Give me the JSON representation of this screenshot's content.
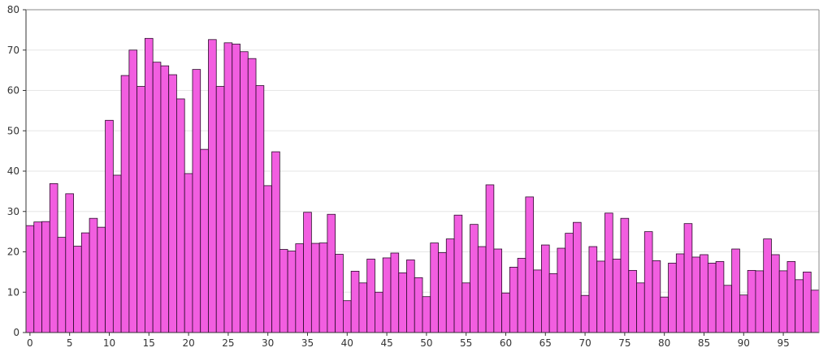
{
  "chart_data": {
    "type": "bar",
    "title": "",
    "xlabel": "",
    "ylabel": "",
    "xlim": [
      0,
      100
    ],
    "ylim": [
      0,
      80
    ],
    "x_ticks": [
      0,
      5,
      10,
      15,
      20,
      25,
      30,
      35,
      40,
      45,
      50,
      55,
      60,
      65,
      70,
      75,
      80,
      85,
      90,
      95
    ],
    "y_ticks": [
      0,
      10,
      20,
      30,
      40,
      50,
      60,
      70,
      80
    ],
    "grid": "horizontal",
    "bar_color": "#f25ee0",
    "bar_edge_color": "#2a0a2a",
    "values": [
      26.5,
      27.4,
      27.5,
      36.9,
      23.6,
      34.4,
      21.4,
      24.7,
      28.3,
      26.1,
      52.6,
      39.0,
      63.7,
      70.0,
      61.0,
      72.9,
      67.0,
      66.1,
      63.9,
      57.9,
      39.4,
      65.2,
      45.4,
      72.6,
      61.0,
      71.8,
      71.5,
      69.6,
      67.9,
      61.2,
      36.4,
      44.8,
      20.6,
      20.2,
      22.0,
      29.8,
      22.1,
      22.2,
      29.3,
      19.4,
      7.9,
      15.2,
      12.3,
      18.2,
      10.0,
      18.5,
      19.7,
      14.8,
      18.0,
      13.6,
      8.9,
      22.2,
      19.8,
      23.2,
      29.1,
      12.3,
      26.8,
      21.3,
      36.6,
      20.7,
      9.8,
      16.2,
      18.4,
      33.6,
      15.5,
      21.7,
      14.6,
      20.9,
      24.6,
      27.3,
      9.2,
      21.3,
      17.7,
      29.6,
      18.2,
      28.3,
      15.4,
      12.3,
      25.0,
      17.8,
      8.8,
      17.2,
      19.5,
      27.0,
      18.7,
      19.3,
      17.2,
      17.6,
      11.7,
      20.7,
      9.3,
      15.4,
      15.3,
      23.2,
      19.3,
      15.3,
      17.6,
      13.1,
      15.0,
      10.5
    ]
  }
}
